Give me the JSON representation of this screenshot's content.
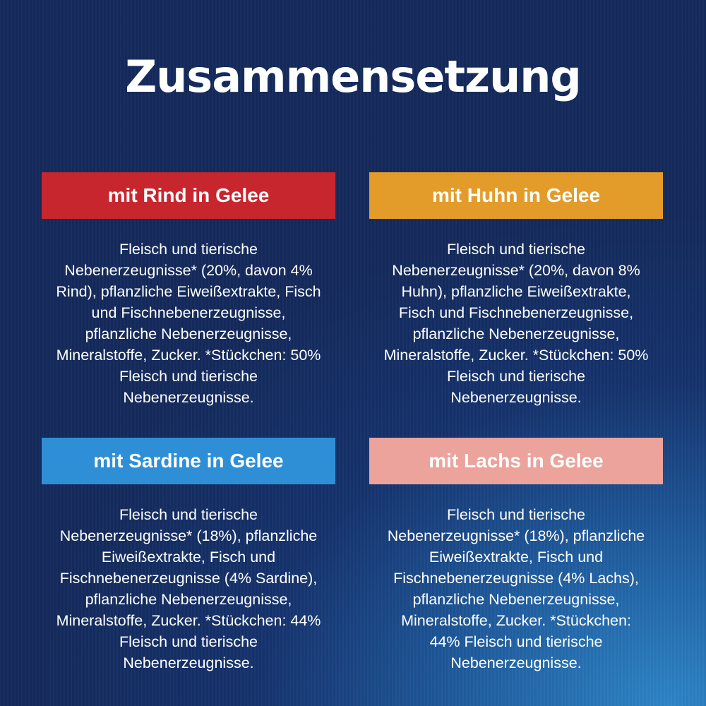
{
  "title": "Zusammensetzung",
  "colors": {
    "rind": "#c8262e",
    "huhn": "#e39c2a",
    "sardine": "#2f8fd6",
    "lachs": "#eba39c"
  },
  "varieties": [
    {
      "label": "mit Rind in Gelee",
      "lines": [
        "Fleisch und tierische",
        "Nebenerzeugnisse* (20%, davon 4%",
        "Rind), pflanzliche Eiweißextrakte, Fisch",
        "und Fischnebenerzeugnisse,",
        "pflanzliche Nebenerzeugnisse,",
        "Mineralstoffe, Zucker. *Stückchen: 50%",
        "Fleisch und tierische",
        "Nebenerzeugnisse."
      ]
    },
    {
      "label": "mit Huhn in Gelee",
      "lines": [
        "Fleisch und tierische",
        "Nebenerzeugnisse* (20%, davon 8%",
        "Huhn), pflanzliche Eiweißextrakte,",
        "Fisch und Fischnebenerzeugnisse,",
        "pflanzliche Nebenerzeugnisse,",
        "Mineralstoffe, Zucker. *Stückchen: 50%",
        "Fleisch und tierische",
        "Nebenerzeugnisse."
      ]
    },
    {
      "label": "mit Sardine in Gelee",
      "lines": [
        "Fleisch und tierische",
        "Nebenerzeugnisse* (18%), pflanzliche",
        "Eiweißextrakte, Fisch und",
        "Fischnebenerzeugnisse (4% Sardine),",
        "pflanzliche Nebenerzeugnisse,",
        "Mineralstoffe, Zucker. *Stückchen: 44%",
        "Fleisch und tierische",
        "Nebenerzeugnisse."
      ]
    },
    {
      "label": "mit Lachs in Gelee",
      "lines": [
        "Fleisch und tierische",
        "Nebenerzeugnisse* (18%), pflanzliche",
        "Eiweißextrakte, Fisch und",
        "Fischnebenerzeugnisse (4% Lachs),",
        "pflanzliche Nebenerzeugnisse,",
        "Mineralstoffe, Zucker.  *Stückchen:",
        "44% Fleisch und tierische",
        "Nebenerzeugnisse."
      ]
    }
  ]
}
